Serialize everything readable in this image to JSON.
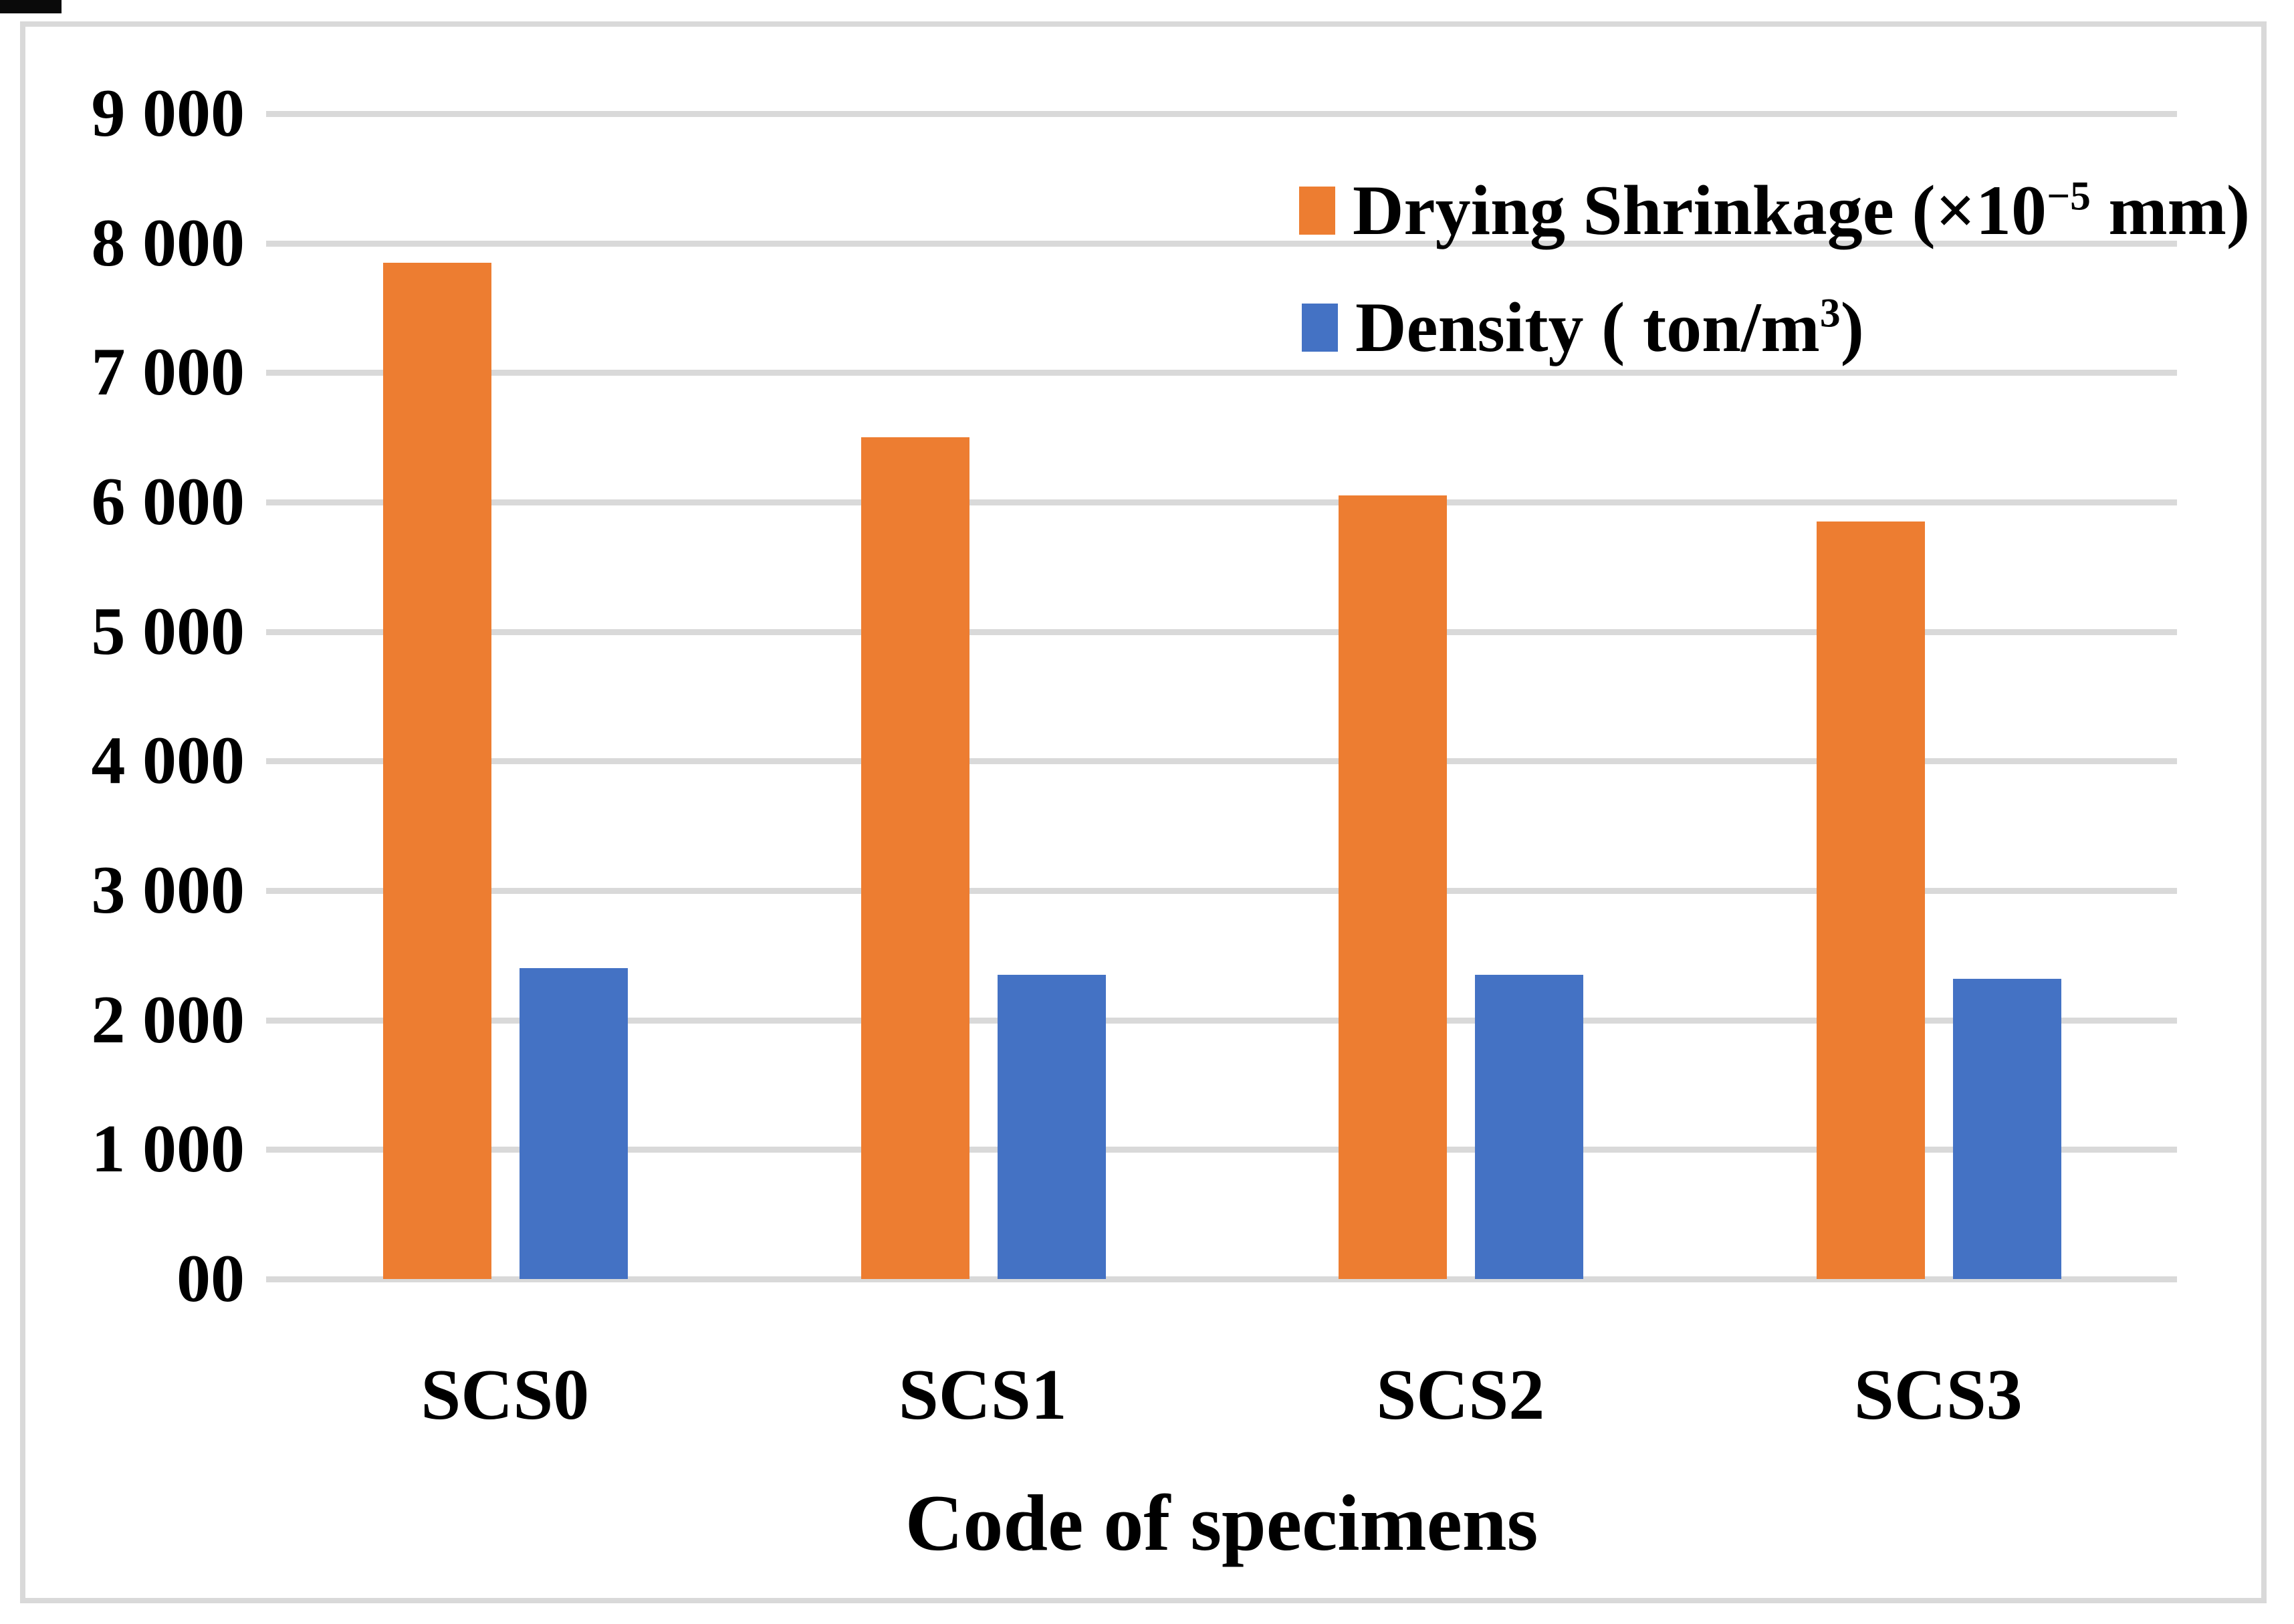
{
  "chart_data": {
    "type": "bar",
    "title": "",
    "categories": [
      "SCS0",
      "SCS1",
      "SCS2",
      "SCS3"
    ],
    "series": [
      {
        "name": "Drying Shrinkage (×10⁻⁵ mm)",
        "color": "#ED7D31",
        "values": [
          7850,
          6500,
          6050,
          5850
        ]
      },
      {
        "name": "Density ( ton/m³)",
        "color": "#4472C4",
        "values": [
          2400,
          2350,
          2350,
          2320
        ]
      }
    ],
    "xlabel": "Code of specimens",
    "ylabel": "",
    "ylim": [
      0,
      9000
    ],
    "ytick_step": 1000,
    "ytick_labels": [
      "00",
      "1 000",
      "2 000",
      "3 000",
      "4 000",
      "5 000",
      "6 000",
      "7 000",
      "8 000",
      "9 000"
    ],
    "grid": true,
    "gridline_color": "#D9D9D9",
    "border_color": "#D9D9D9",
    "text_color": "#000000",
    "legend_position": "top-right"
  },
  "legend": {
    "items": [
      {
        "pre": "Drying Shrinkage (×10",
        "sup": "−5",
        "post": " mm)"
      },
      {
        "pre": "Density ( ton/m",
        "sup": "3",
        "post": ")"
      }
    ]
  }
}
